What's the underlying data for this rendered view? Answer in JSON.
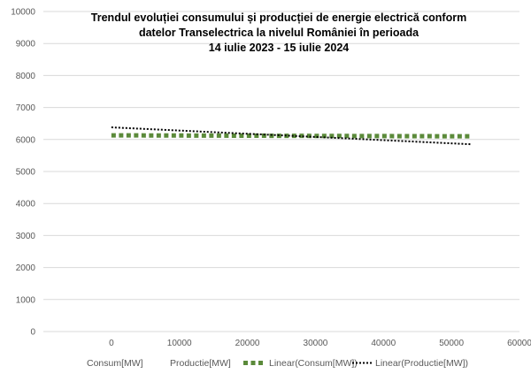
{
  "chart_data": {
    "type": "scatter",
    "title_lines": [
      "Trendul evoluției consumului și producției de energie electrică conform",
      "datelor Transelectrica la nivelul României în perioada",
      "14 iulie 2023 - 15 iulie 2024"
    ],
    "x_ticks": [
      "0",
      "10000",
      "20000",
      "30000",
      "40000",
      "50000",
      "60000"
    ],
    "y_ticks": [
      "0",
      "1000",
      "2000",
      "3000",
      "4000",
      "5000",
      "6000",
      "7000",
      "8000",
      "9000",
      "10000"
    ],
    "xlim": [
      -10000,
      60000
    ],
    "ylim": [
      0,
      10000
    ],
    "grid": "horizontal",
    "legend_position": "bottom",
    "series": [
      {
        "name": "Consum[MW]",
        "x": [],
        "y": []
      },
      {
        "name": "Productie[MW]",
        "x": [],
        "y": []
      }
    ],
    "trendlines": [
      {
        "name": "Linear(Consum[MW])",
        "style": "square-dot",
        "color": "#5b8a3a",
        "x": [
          0,
          53000
        ],
        "y": [
          6130,
          6100
        ]
      },
      {
        "name": "Linear(Productie[MW])",
        "style": "round-dot",
        "color": "#000000",
        "x": [
          0,
          53000
        ],
        "y": [
          6380,
          5850
        ]
      }
    ],
    "legend": [
      {
        "label": "Consum[MW]",
        "marker": "none"
      },
      {
        "label": "Productie[MW]",
        "marker": "none"
      },
      {
        "label": "Linear(Consum[MW])",
        "marker": "square-dot-green"
      },
      {
        "label": "Linear(Productie[MW])",
        "marker": "round-dot-black"
      }
    ]
  }
}
